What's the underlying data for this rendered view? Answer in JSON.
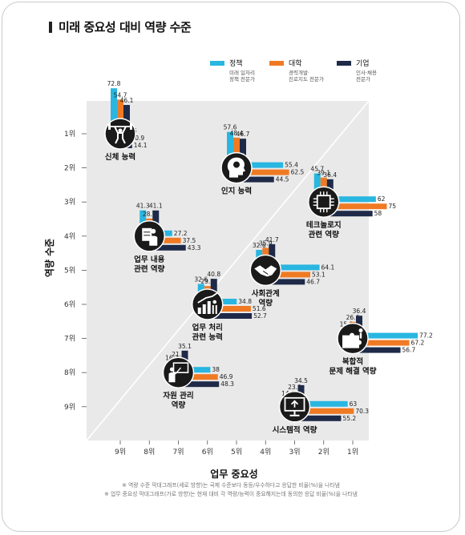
{
  "title": "미래 중요성 대비 역량 수준",
  "colors": {
    "policy": "#29b6e0",
    "univ": "#f07a23",
    "corp": "#1e2a48",
    "bg": "#e9e9e9",
    "icon": "#1a1a1a"
  },
  "legend": [
    {
      "name": "정책",
      "sub": [
        "미래 일자리",
        "정책 전문가"
      ],
      "color_key": "policy"
    },
    {
      "name": "대학",
      "sub": [
        "경력개발·",
        "진로지도 전문가"
      ],
      "color_key": "univ"
    },
    {
      "name": "기업",
      "sub": [
        "인사·채용",
        "전문가"
      ],
      "color_key": "corp"
    }
  ],
  "notes": [
    "※ 역량 수준 막대그래프(세로 방향)는 국제 수준보다 동등/우수하다고 응답한 비율(%)을 나타냄",
    "※ 업무 중요성 막대그래프(가로 방향)는 현재 대비 각 역량/능력이 중요해지는데 동의한 응답 비율(%)을 나타냄"
  ],
  "chart_data": {
    "type": "scatter",
    "xlabel": "업무 중요성",
    "ylabel": "역량 수준",
    "x_ticks": [
      "9위",
      "8위",
      "7위",
      "6위",
      "5위",
      "4위",
      "3위",
      "2위",
      "1위"
    ],
    "y_ticks": [
      "1위",
      "2위",
      "3위",
      "4위",
      "5위",
      "6위",
      "7위",
      "8위",
      "9위"
    ],
    "series_names": [
      "정책",
      "대학",
      "기업"
    ],
    "items": [
      {
        "label": [
          "신체 능력"
        ],
        "icon": "weightlifter-icon",
        "importance_rank": 9,
        "competency_rank": 1,
        "competency": [
          72.8,
          54.7,
          46.1
        ],
        "importance": [
          6.5,
          10.9,
          14.1
        ]
      },
      {
        "label": [
          "인지 능력"
        ],
        "icon": "head-bulb-icon",
        "importance_rank": 5,
        "competency_rank": 2,
        "competency": [
          57.6,
          48.4,
          46.7
        ],
        "importance": [
          55.4,
          62.5,
          44.5
        ]
      },
      {
        "label": [
          "테크놀로지",
          "관련 역량"
        ],
        "icon": "chip-icon",
        "importance_rank": 2,
        "competency_rank": 3,
        "competency": [
          45.7,
          39.1,
          36.4
        ],
        "importance": [
          62.0,
          75.0,
          58.0
        ]
      },
      {
        "label": [
          "업무 내용",
          "관련 역량"
        ],
        "icon": "document-worker-icon",
        "importance_rank": 8,
        "competency_rank": 4,
        "competency": [
          41.3,
          28.1,
          41.1
        ],
        "importance": [
          27.2,
          37.5,
          43.3
        ]
      },
      {
        "label": [
          "사회관계",
          "역량"
        ],
        "icon": "handshake-icon",
        "importance_rank": 4,
        "competency_rank": 5,
        "competency": [
          32.6,
          35.9,
          41.7
        ],
        "importance": [
          64.1,
          53.1,
          46.7
        ]
      },
      {
        "label": [
          "업무 처리",
          "관련 능력"
        ],
        "icon": "growth-chart-icon",
        "importance_rank": 6,
        "competency_rank": 6,
        "competency": [
          32.6,
          29.2,
          40.8
        ],
        "importance": [
          34.8,
          51.6,
          52.7
        ]
      },
      {
        "label": [
          "복합적",
          "문제 해결 역량"
        ],
        "icon": "puzzle-icon",
        "importance_rank": 1,
        "competency_rank": 7,
        "competency": [
          15.3,
          26.6,
          36.4
        ],
        "importance": [
          77.2,
          67.2,
          56.7
        ]
      },
      {
        "label": [
          "자원 관리",
          "역량"
        ],
        "icon": "presentation-icon",
        "importance_rank": 7,
        "competency_rank": 8,
        "competency": [
          16.3,
          21.9,
          35.1
        ],
        "importance": [
          38,
          46.9,
          48.3
        ]
      },
      {
        "label": [
          "시스템적 역량"
        ],
        "icon": "monitor-upload-icon",
        "importance_rank": 3,
        "competency_rank": 9,
        "competency": [
          14.1,
          23.9,
          34.5
        ],
        "importance": [
          63.0,
          70.3,
          55.2
        ]
      }
    ]
  }
}
